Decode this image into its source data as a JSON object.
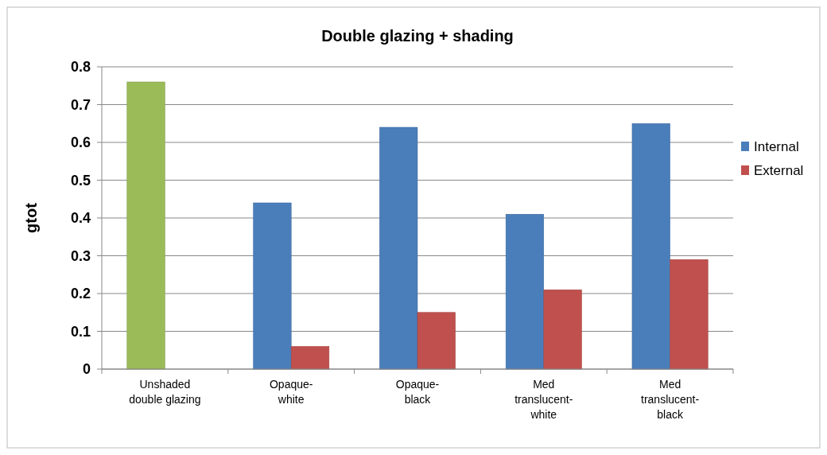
{
  "chart_data": {
    "type": "bar",
    "title": "Double glazing + shading",
    "ylabel": "gtot",
    "categories": [
      "Unshaded double glazing",
      "Opaque-white",
      "Opaque-black",
      "Med translucent-white",
      "Med translucent-black"
    ],
    "series": [
      {
        "name": "Internal",
        "color": "#4a7ebb",
        "colors": [
          "#9bbb59",
          "#4a7ebb",
          "#4a7ebb",
          "#4a7ebb",
          "#4a7ebb"
        ],
        "values": [
          0.76,
          0.44,
          0.64,
          0.41,
          0.65
        ]
      },
      {
        "name": "External",
        "color": "#c0504d",
        "values": [
          null,
          0.06,
          0.15,
          0.21,
          0.29
        ]
      }
    ],
    "ylim": [
      0,
      0.8
    ],
    "yticks": [
      0,
      {
        "value": 0.1,
        "label": "0.1"
      },
      0.2,
      0.3,
      0.4,
      0.5,
      0.6,
      0.7,
      0.8
    ],
    "grid": "y",
    "legend": "right"
  }
}
